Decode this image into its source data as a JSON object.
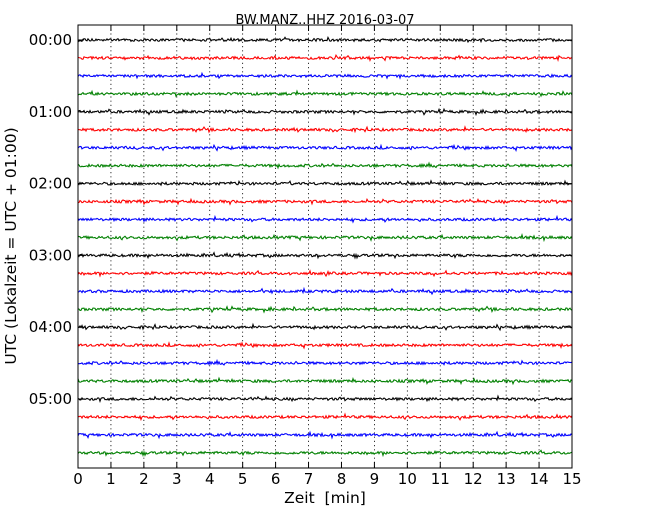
{
  "chart_data": {
    "type": "line",
    "title": "BW.MANZ..HHZ 2016-03-07",
    "xlabel": "Zeit  [min]",
    "ylabel": "UTC (Lokalzeit = UTC + 01:00)",
    "xlim": [
      0,
      15
    ],
    "x_ticks": [
      "0",
      "1",
      "2",
      "3",
      "4",
      "5",
      "6",
      "7",
      "8",
      "9",
      "10",
      "11",
      "12",
      "13",
      "14",
      "15"
    ],
    "y_tick_labels": [
      "00:00",
      "01:00",
      "02:00",
      "03:00",
      "04:00",
      "05:00"
    ],
    "grid": {
      "x": "dotted",
      "y": false
    },
    "trace_interval_min": 15,
    "trace_count": 24,
    "trace_colors": [
      "#000000",
      "#ff0000",
      "#0000ff",
      "#008000"
    ]
  }
}
